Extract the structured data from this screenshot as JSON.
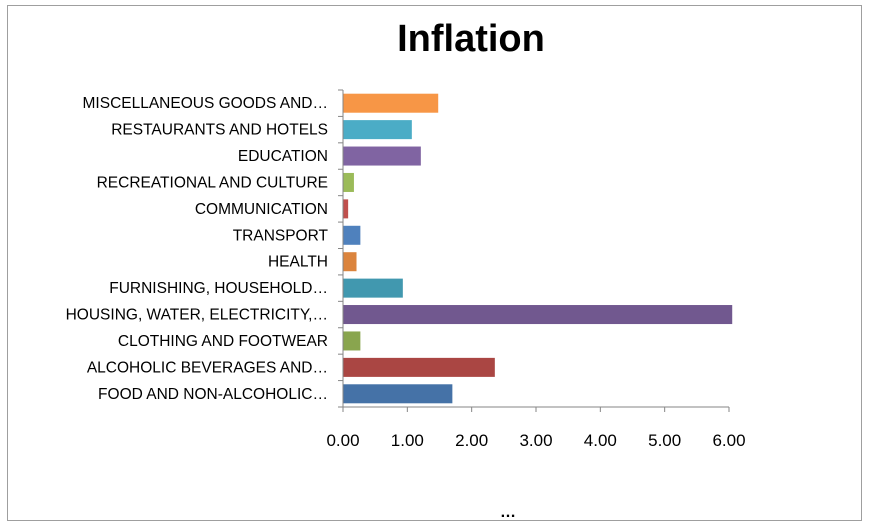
{
  "chart_data": {
    "type": "bar",
    "orientation": "horizontal",
    "title": "Inflation",
    "xlabel": "",
    "ylabel": "",
    "footer": "…",
    "xlim": [
      0,
      6
    ],
    "xticks": [
      "0.00",
      "1.00",
      "2.00",
      "3.00",
      "4.00",
      "5.00",
      "6.00"
    ],
    "grid": false,
    "legend": "none",
    "categories": [
      "FOOD AND NON-ALCOHOLIC…",
      "ALCOHOLIC BEVERAGES AND…",
      "CLOTHING AND FOOTWEAR",
      "HOUSING, WATER, ELECTRICITY,…",
      "FURNISHING, HOUSEHOLD…",
      "HEALTH",
      "TRANSPORT",
      "COMMUNICATION",
      "RECREATIONAL AND CULTURE",
      "EDUCATION",
      "RESTAURANTS AND HOTELS",
      "MISCELLANEOUS GOODS AND…"
    ],
    "values": [
      1.7,
      2.36,
      0.27,
      6.05,
      0.93,
      0.21,
      0.27,
      0.08,
      0.17,
      1.21,
      1.07,
      1.48
    ],
    "colors": [
      "#4572a7",
      "#aa4643",
      "#89a54e",
      "#71588f",
      "#4198af",
      "#db843d",
      "#4f81bd",
      "#c0504d",
      "#9bbb59",
      "#8064a2",
      "#4bacc6",
      "#f79646"
    ]
  }
}
